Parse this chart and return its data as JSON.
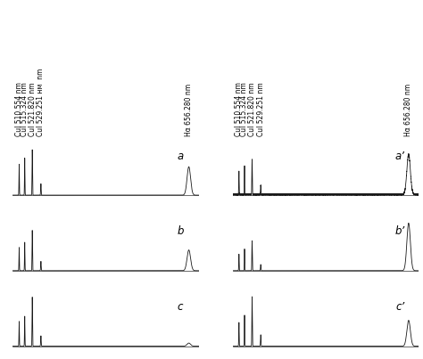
{
  "line_positions": [
    510.554,
    515.324,
    521.82,
    529.251,
    656.28
  ],
  "line_labels_left": [
    "CuI 510.554 nm",
    "CuI 515.324 nm",
    "CuI 521.820 nm",
    "CuI 529.251 нм  nm",
    "Hα 656.280 nm"
  ],
  "line_labels_right": [
    "CuI 510.554 nm",
    "CuI 515.324 nm",
    "CuI 521.820 nm",
    "CuI 529.251 nm",
    "Hα 656.280 nm"
  ],
  "x_min": 505,
  "x_max": 665,
  "panel_labels_left": [
    "a",
    "b",
    "c"
  ],
  "panel_labels_right": [
    "a’",
    "b’",
    "c’"
  ],
  "bg": "#ffffff",
  "lc": "#1a1a1a",
  "left_peaks": {
    "a": [
      0.6,
      0.72,
      0.88,
      0.22,
      0.55
    ],
    "b": [
      0.45,
      0.55,
      0.78,
      0.18,
      0.4
    ],
    "c": [
      0.48,
      0.58,
      0.95,
      0.2,
      0.06
    ]
  },
  "right_peaks": {
    "a": [
      0.45,
      0.55,
      0.68,
      0.18,
      0.78
    ],
    "b": [
      0.32,
      0.42,
      0.58,
      0.12,
      0.92
    ],
    "c": [
      0.46,
      0.6,
      0.96,
      0.22,
      0.5
    ]
  },
  "figsize": [
    4.74,
    4.03
  ],
  "dpi": 100,
  "label_fontsize": 5.5,
  "panel_label_fontsize": 8.5
}
